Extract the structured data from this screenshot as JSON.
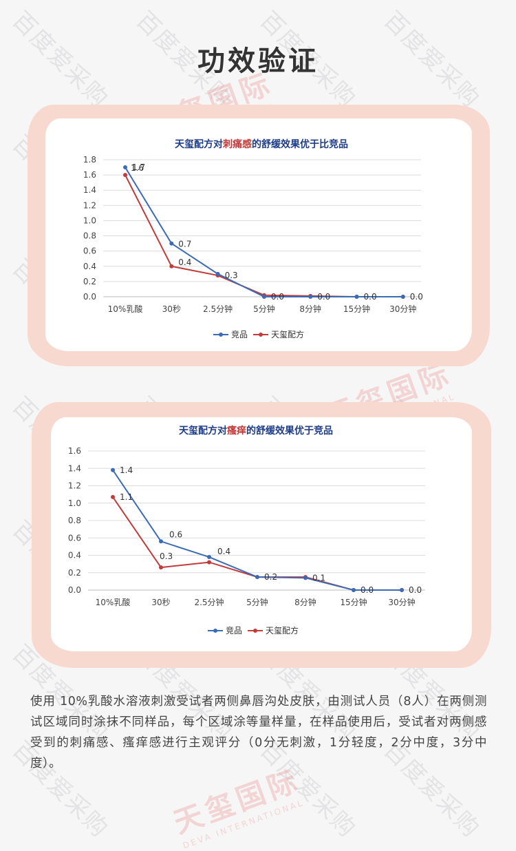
{
  "page_title": "功效验证",
  "watermark": {
    "text": "百度爱采购",
    "logo_cn": "天玺国际",
    "logo_en": "DEVA INTERNATIONAL"
  },
  "colors": {
    "competitor": "#3b6bb5",
    "tianxi": "#c23a3a",
    "frame": "#f7d9d0",
    "title_blue": "#1f3d86"
  },
  "chart_data": [
    {
      "type": "line",
      "title_parts": [
        "天玺配方对",
        "刺痛感",
        "的舒缓效果优于比竞品"
      ],
      "categories": [
        "10%乳酸",
        "30秒",
        "2.5分钟",
        "5分钟",
        "8分钟",
        "15分钟",
        "30分钟"
      ],
      "yticks": [
        "0.0",
        "0.2",
        "0.4",
        "0.6",
        "0.8",
        "1.0",
        "1.2",
        "1.4",
        "1.6",
        "1.8"
      ],
      "ylim": [
        0,
        1.8
      ],
      "legend": [
        "竞品",
        "天玺配方"
      ],
      "legend_position": "bottom",
      "grid": true,
      "series": [
        {
          "name": "竞品",
          "values": [
            1.7,
            0.7,
            0.3,
            0.0,
            0.0,
            0.0,
            0.0
          ]
        },
        {
          "name": "天玺配方",
          "values": [
            1.6,
            0.4,
            0.28,
            0.02,
            0.01,
            0.0,
            0.0
          ]
        }
      ],
      "data_labels": [
        {
          "index": 0,
          "text": "1.7"
        },
        {
          "index": 0,
          "text": "1.6"
        },
        {
          "index": 1,
          "text": "0.7"
        },
        {
          "index": 1,
          "text": "0.4"
        },
        {
          "index": 2,
          "text": "0.3"
        },
        {
          "index": 3,
          "text": "0.0"
        },
        {
          "index": 4,
          "text": "0.0"
        },
        {
          "index": 5,
          "text": "0.0"
        },
        {
          "index": 6,
          "text": "0.0"
        }
      ]
    },
    {
      "type": "line",
      "title_parts": [
        "天玺配方对",
        "瘙痒",
        "的舒缓效果优于竞品"
      ],
      "categories": [
        "10%乳酸",
        "30秒",
        "2.5分钟",
        "5分钟",
        "8分钟",
        "15分钟",
        "30分钟"
      ],
      "yticks": [
        "0.0",
        "0.2",
        "0.4",
        "0.6",
        "0.8",
        "1.0",
        "1.2",
        "1.4",
        "1.6"
      ],
      "ylim": [
        0,
        1.6
      ],
      "legend": [
        "竞品",
        "天玺配方"
      ],
      "legend_position": "bottom",
      "grid": true,
      "series": [
        {
          "name": "竞品",
          "values": [
            1.38,
            0.56,
            0.38,
            0.15,
            0.14,
            0.0,
            0.0
          ]
        },
        {
          "name": "天玺配方",
          "values": [
            1.07,
            0.26,
            0.32,
            0.15,
            0.15,
            0.0,
            0.0
          ]
        }
      ],
      "data_labels": [
        {
          "index": 0,
          "text": "1.4"
        },
        {
          "index": 0,
          "text": "1.1"
        },
        {
          "index": 1,
          "text": "0.6"
        },
        {
          "index": 1,
          "text": "0.3"
        },
        {
          "index": 2,
          "text": "0.4"
        },
        {
          "index": 3,
          "text": "0.2"
        },
        {
          "index": 4,
          "text": "0.1"
        },
        {
          "index": 5,
          "text": "0.0"
        },
        {
          "index": 6,
          "text": "0.0"
        }
      ]
    }
  ],
  "description": "使用 10%乳酸水溶液刺激受试者两侧鼻唇沟处皮肤，由测试人员（8人）在两侧测试区域同时涂抹不同样品，每个区域涂等量样量，在样品使用后，受试者对两侧感受到的刺痛感、瘙痒感进行主观评分（0分无刺激，1分轻度，2分中度，3分中度）。"
}
